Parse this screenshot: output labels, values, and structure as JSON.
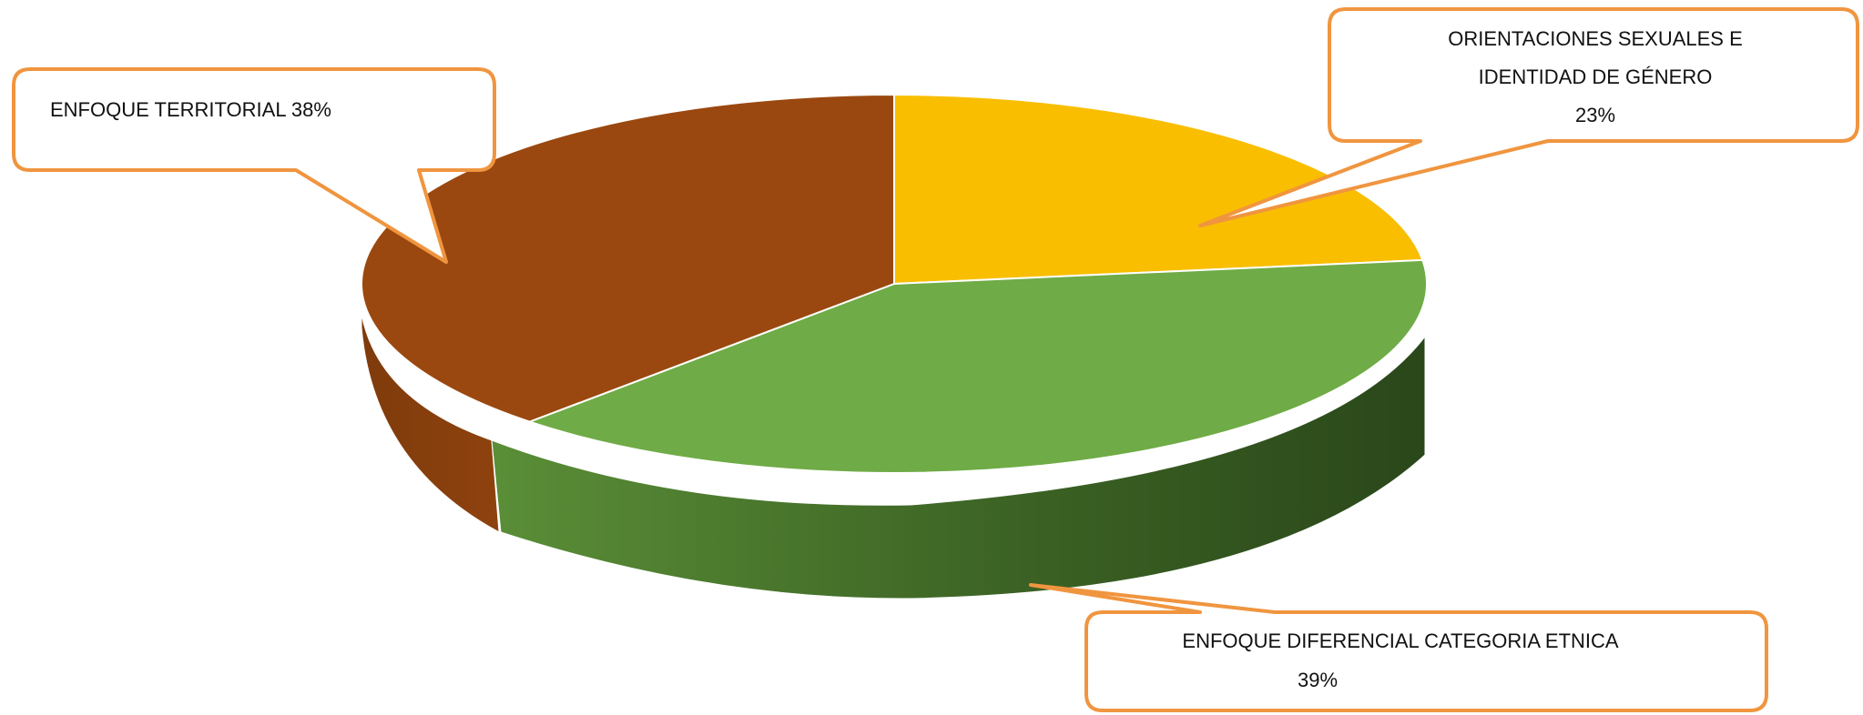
{
  "chart_data": {
    "type": "pie",
    "title": "",
    "style": "3d-exploded-callouts",
    "slices": [
      {
        "label_lines": [
          "ORIENTACIONES SEXUALES E",
          "IDENTIDAD DE GÉNERO",
          "23%"
        ],
        "name": "ORIENTACIONES SEXUALES E IDENTIDAD DE GÉNERO",
        "value": 23,
        "color": "#F9BE00"
      },
      {
        "label_lines": [
          "ENFOQUE DIFERENCIAL CATEGORIA ETNICA",
          "39%"
        ],
        "name": "ENFOQUE DIFERENCIAL CATEGORIA ETNICA",
        "value": 39,
        "color": "#6FAB46"
      },
      {
        "label_lines": [
          "ENFOQUE TERRITORIAL 38%"
        ],
        "name": "ENFOQUE TERRITORIAL",
        "value": 38,
        "color": "#9A480F"
      }
    ],
    "callout_border_color": "#F0953F"
  }
}
